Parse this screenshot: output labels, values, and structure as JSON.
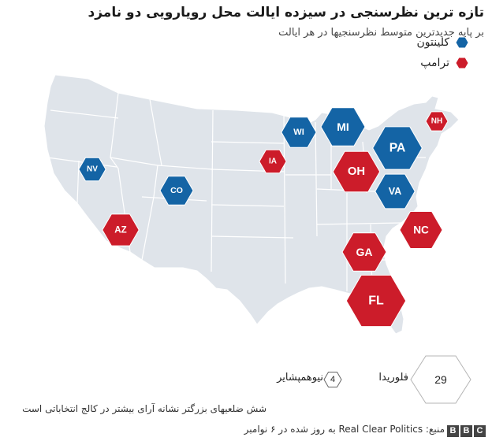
{
  "title": "تازه ترین نظرسنجی در سیزده ایالت محل رویارویی دو نامزد",
  "subtitle": "بر پایه جدیدترین متوسط نظرسنجیها در هر ایالت",
  "legend": [
    {
      "label": "کلینتون",
      "color": "#1464a5"
    },
    {
      "label": "ترامپ",
      "color": "#cc1c2a"
    }
  ],
  "states": [
    {
      "code": "NV",
      "leader": "clinton",
      "votes": 6
    },
    {
      "code": "CO",
      "leader": "clinton",
      "votes": 9
    },
    {
      "code": "AZ",
      "leader": "trump",
      "votes": 11
    },
    {
      "code": "IA",
      "leader": "trump",
      "votes": 6
    },
    {
      "code": "WI",
      "leader": "clinton",
      "votes": 10
    },
    {
      "code": "MI",
      "leader": "clinton",
      "votes": 16
    },
    {
      "code": "OH",
      "leader": "trump",
      "votes": 18
    },
    {
      "code": "PA",
      "leader": "clinton",
      "votes": 20
    },
    {
      "code": "VA",
      "leader": "clinton",
      "votes": 13
    },
    {
      "code": "NH",
      "leader": "trump",
      "votes": 4
    },
    {
      "code": "NC",
      "leader": "trump",
      "votes": 15
    },
    {
      "code": "GA",
      "leader": "trump",
      "votes": 16
    },
    {
      "code": "FL",
      "leader": "trump",
      "votes": 29
    }
  ],
  "size_key": {
    "large": {
      "value": "29",
      "label": "فلوریدا"
    },
    "small": {
      "value": "4",
      "label": "نیوهمپشایر"
    }
  },
  "footnote": "شش ضلعیهای بزرگتر نشانه آرای بیشتر در کالج انتخاباتی است",
  "source": "منبع: Real Clear Politics به روز شده در ۶ نوامبر",
  "logo": [
    "B",
    "B",
    "C"
  ]
}
